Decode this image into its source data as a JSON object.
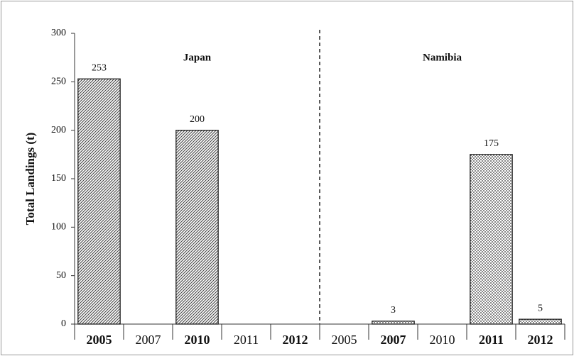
{
  "chart_data": {
    "type": "bar",
    "y_label": "Total Landings (t)",
    "categories": [
      "2005",
      "2007",
      "2010",
      "2011",
      "2012",
      "2005",
      "2007",
      "2010",
      "2011",
      "2012"
    ],
    "series": [
      {
        "name": "Japan",
        "color": "#555555",
        "pattern": "hatch",
        "values": [
          253,
          null,
          200,
          null,
          null,
          null,
          null,
          null,
          null,
          null
        ]
      },
      {
        "name": "Namibia",
        "color": "#555555",
        "pattern": "dots",
        "values": [
          null,
          null,
          null,
          null,
          null,
          null,
          3,
          null,
          175,
          5
        ]
      }
    ],
    "ylim": [
      0,
      300
    ],
    "yticks": [
      0,
      50,
      100,
      150,
      200,
      250,
      300
    ],
    "grid": false
  }
}
